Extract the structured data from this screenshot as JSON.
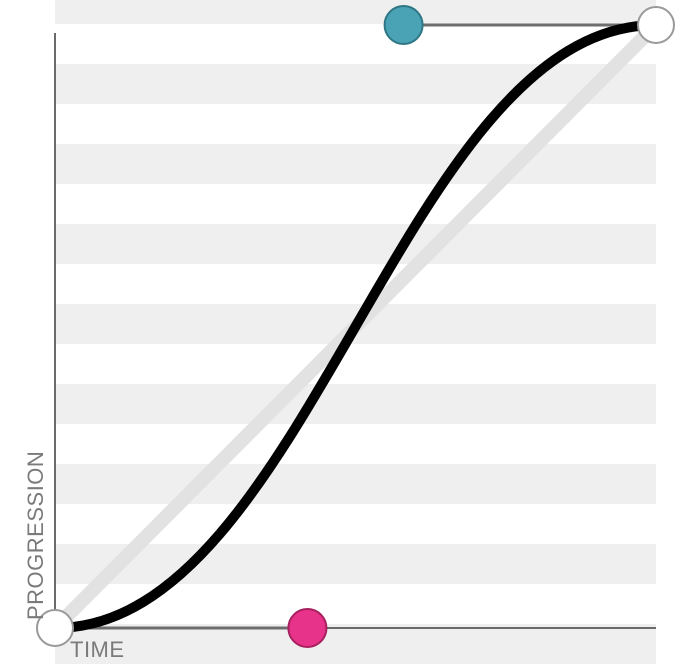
{
  "editor": {
    "x_axis_label": "TIME",
    "y_axis_label": "PROGRESSION"
  },
  "curve": {
    "type": "cubic-bezier",
    "p1": [
      0.42,
      0
    ],
    "p2": [
      0.58,
      1
    ]
  },
  "colors": {
    "background": "#ffffff",
    "stripe": "#efefef",
    "axis": "#6a6a6a",
    "curve": "#000000",
    "linear_guide": "#e2e2e2",
    "handle_line": "#6e6e6e",
    "handle_p1": "#e8338a",
    "handle_p2": "#4aa3b5",
    "endpoint_fill": "#ffffff",
    "endpoint_stroke": "#9a9a9a"
  }
}
